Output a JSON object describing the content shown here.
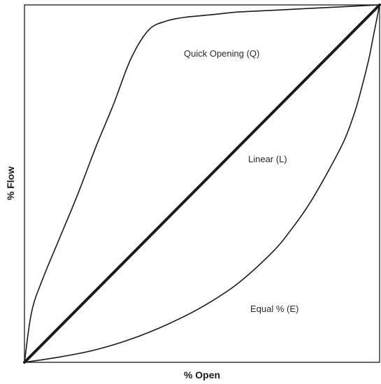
{
  "chart_data": {
    "type": "line",
    "xlabel": "% Open",
    "ylabel": "% Flow",
    "xlim": [
      0,
      100
    ],
    "ylim": [
      0,
      100
    ],
    "grid": false,
    "series": [
      {
        "name": "Quick Opening (Q)",
        "x": [
          0,
          2,
          5,
          10,
          15,
          20,
          25,
          30,
          35,
          40,
          45,
          50,
          55,
          60,
          70,
          80,
          90,
          100
        ],
        "y": [
          0,
          14,
          23,
          35,
          47,
          60,
          72,
          85,
          93,
          95.5,
          96.5,
          97,
          97.5,
          98,
          98.5,
          99,
          99.5,
          100
        ]
      },
      {
        "name": "Linear (L)",
        "x": [
          0,
          100
        ],
        "y": [
          0,
          100
        ]
      },
      {
        "name": "Equal % (E)",
        "x": [
          0,
          10,
          20,
          30,
          40,
          50,
          60,
          70,
          75,
          80,
          85,
          90,
          93,
          95,
          97,
          98,
          99,
          100
        ],
        "y": [
          0,
          1.5,
          3.5,
          6.5,
          10.5,
          15.5,
          22,
          31,
          37,
          44,
          52.5,
          62,
          70,
          77,
          85,
          90,
          95,
          100
        ]
      }
    ]
  }
}
